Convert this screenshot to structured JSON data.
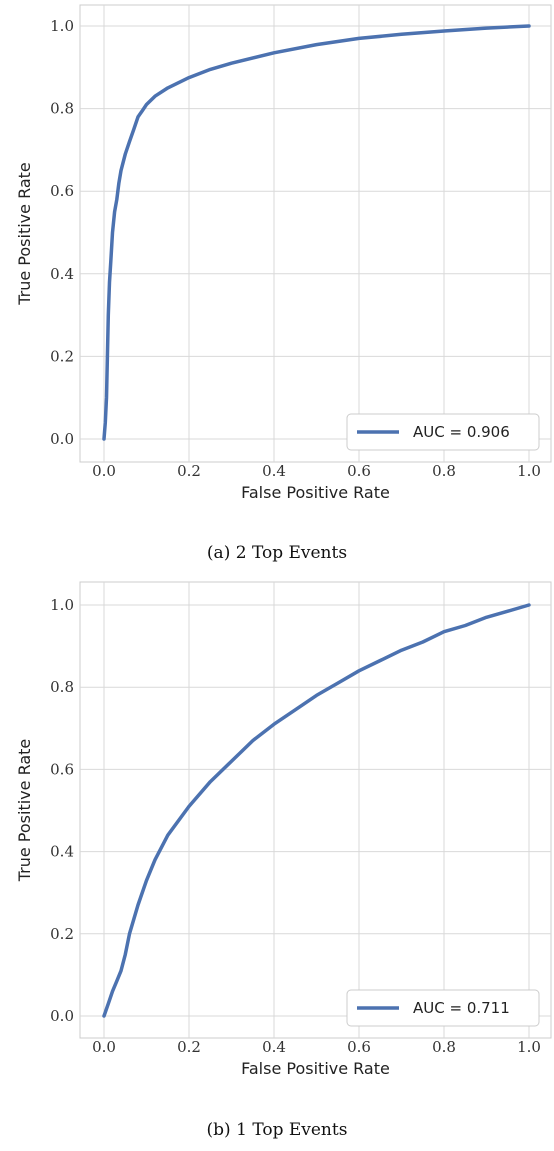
{
  "chart_data": [
    {
      "type": "line",
      "caption": "(a) 2 Top Events",
      "xlabel": "False Positive Rate",
      "ylabel": "True Positive Rate",
      "xlim": [
        0.0,
        1.0
      ],
      "ylim": [
        0.0,
        1.0
      ],
      "xticks": [
        "0.0",
        "0.2",
        "0.4",
        "0.6",
        "0.8",
        "1.0"
      ],
      "yticks": [
        "0.0",
        "0.2",
        "0.4",
        "0.6",
        "0.8",
        "1.0"
      ],
      "grid": true,
      "legend_position": "lower right",
      "color": "#4c72b0",
      "series": [
        {
          "name": "AUC = 0.906",
          "x": [
            0.0,
            0.003,
            0.006,
            0.008,
            0.01,
            0.013,
            0.016,
            0.02,
            0.025,
            0.03,
            0.035,
            0.04,
            0.05,
            0.06,
            0.07,
            0.08,
            0.09,
            0.1,
            0.12,
            0.15,
            0.2,
            0.25,
            0.3,
            0.4,
            0.5,
            0.6,
            0.7,
            0.8,
            0.9,
            1.0
          ],
          "y": [
            0.0,
            0.04,
            0.1,
            0.2,
            0.3,
            0.38,
            0.43,
            0.5,
            0.55,
            0.58,
            0.62,
            0.65,
            0.69,
            0.72,
            0.75,
            0.78,
            0.795,
            0.81,
            0.83,
            0.85,
            0.875,
            0.895,
            0.91,
            0.935,
            0.955,
            0.97,
            0.98,
            0.988,
            0.995,
            1.0
          ]
        }
      ]
    },
    {
      "type": "line",
      "caption": "(b) 1 Top Events",
      "xlabel": "False Positive Rate",
      "ylabel": "True Positive Rate",
      "xlim": [
        0.0,
        1.0
      ],
      "ylim": [
        0.0,
        1.0
      ],
      "xticks": [
        "0.0",
        "0.2",
        "0.4",
        "0.6",
        "0.8",
        "1.0"
      ],
      "yticks": [
        "0.0",
        "0.2",
        "0.4",
        "0.6",
        "0.8",
        "1.0"
      ],
      "grid": true,
      "legend_position": "lower right",
      "color": "#4c72b0",
      "series": [
        {
          "name": "AUC = 0.711",
          "x": [
            0.0,
            0.01,
            0.02,
            0.03,
            0.04,
            0.05,
            0.06,
            0.08,
            0.1,
            0.12,
            0.15,
            0.2,
            0.25,
            0.3,
            0.35,
            0.4,
            0.45,
            0.5,
            0.55,
            0.6,
            0.65,
            0.7,
            0.75,
            0.8,
            0.85,
            0.9,
            0.95,
            1.0
          ],
          "y": [
            0.0,
            0.03,
            0.06,
            0.085,
            0.11,
            0.15,
            0.2,
            0.27,
            0.33,
            0.38,
            0.44,
            0.51,
            0.57,
            0.62,
            0.67,
            0.71,
            0.745,
            0.78,
            0.81,
            0.84,
            0.865,
            0.89,
            0.91,
            0.935,
            0.95,
            0.97,
            0.985,
            1.0
          ]
        }
      ]
    }
  ]
}
